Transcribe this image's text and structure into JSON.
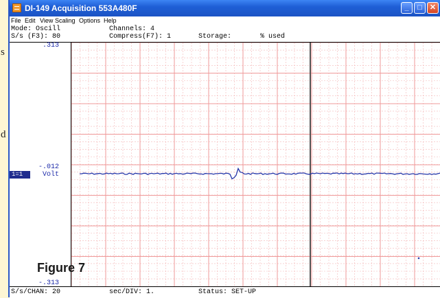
{
  "page": {
    "side_text_1": "s",
    "side_text_2": "d",
    "figure_label": "Figure 7"
  },
  "window": {
    "title": "DI-149 Acquisition 553A480F",
    "buttons": {
      "minimize": "_",
      "maximize": "□",
      "close": "✕"
    }
  },
  "menu": [
    "File",
    "Edit",
    "View",
    "Scaling",
    "Options",
    "Help"
  ],
  "status": {
    "mode": "Mode: Oscill",
    "channels": "Channels: 4",
    "sample_rate": "S/s (F3): 80",
    "compress": "Compress(F7): 1",
    "storage": "Storage:",
    "used": "% used"
  },
  "scale": {
    "top": ".313",
    "mid": "-.012",
    "bottom": "-.313",
    "channel": "1=1",
    "unit": "Volt"
  },
  "bottom": {
    "chan_rate": "S/s/CHAN: 20",
    "sec_div": "sec/DIV: 1.",
    "status": "Status: SET-UP"
  },
  "colors": {
    "grid_major": "#ef9a9a",
    "grid_minor": "#f4b6b6",
    "trace": "#2535a8",
    "cursor": "#555555",
    "titlebar": "#2a63d8",
    "background": "#fdf6d4"
  }
}
